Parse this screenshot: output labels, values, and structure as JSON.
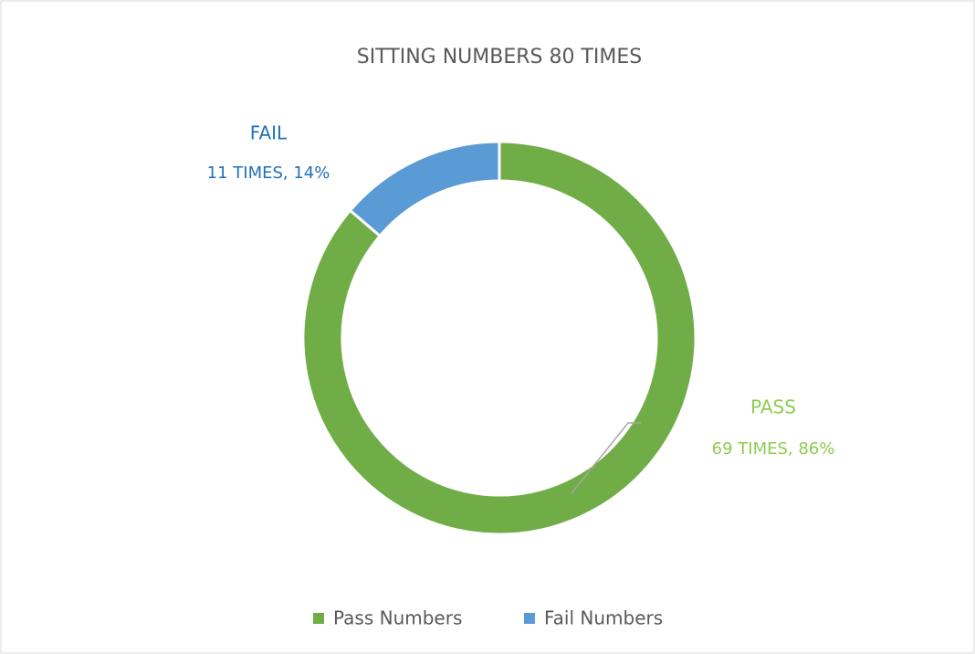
{
  "chart_data": {
    "type": "pie",
    "title": "SITTING NUMBERS 80 TIMES",
    "categories": [
      "Pass Numbers",
      "Fail Numbers"
    ],
    "labels": [
      "PASS",
      "FAIL"
    ],
    "values": [
      69,
      11
    ],
    "value_labels": [
      "69 TIMES, 86%",
      "11 TIMES, 14%"
    ],
    "colors": [
      "#70ad47",
      "#5b9bd5"
    ],
    "label_colors": [
      "#8fcc52",
      "#1f70b8"
    ],
    "legend": "bottom"
  }
}
